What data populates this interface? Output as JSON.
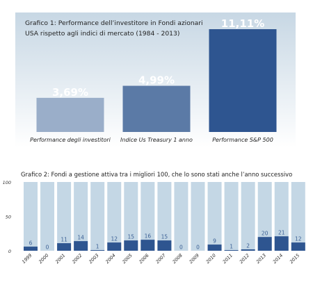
{
  "chart_data": [
    {
      "type": "bar",
      "title": "Grafico 1: Performance dell’investitore in Fondi azionari USA rispetto agli indici di mercato (1984 - 2013)",
      "categories": [
        "Performance degli investitori",
        "Indice Us Treasury 1 anno",
        "Performance S&P 500"
      ],
      "values": [
        3.69,
        4.99,
        11.11
      ],
      "value_labels": [
        "3,69%",
        "4,99%",
        "11,11%"
      ],
      "colors": [
        "#9aaec9",
        "#5b7aa6",
        "#2e5590"
      ],
      "ylim": [
        0,
        11.11
      ],
      "grid": false,
      "background_gradient": [
        "#c7d7e4",
        "#ffffff"
      ]
    },
    {
      "type": "bar",
      "title": "Grafico 2: Fondi a gestione attiva tra i migliori 100, che lo sono stati anche l’anno successivo",
      "categories": [
        "1999",
        "2000",
        "2001",
        "2002",
        "2003",
        "2004",
        "2005",
        "2006",
        "2007",
        "2008",
        "2009",
        "2010",
        "2011",
        "2012",
        "2013",
        "2014",
        "2015"
      ],
      "values": [
        6,
        0,
        11,
        14,
        1,
        12,
        15,
        16,
        15,
        0,
        0,
        9,
        1,
        2,
        20,
        21,
        12
      ],
      "ylim": [
        0,
        100
      ],
      "yticks": [
        "0",
        "50",
        "100"
      ],
      "bar_color": "#2e5590",
      "background_bar_color": "#c4d7e5",
      "grid": false
    }
  ]
}
